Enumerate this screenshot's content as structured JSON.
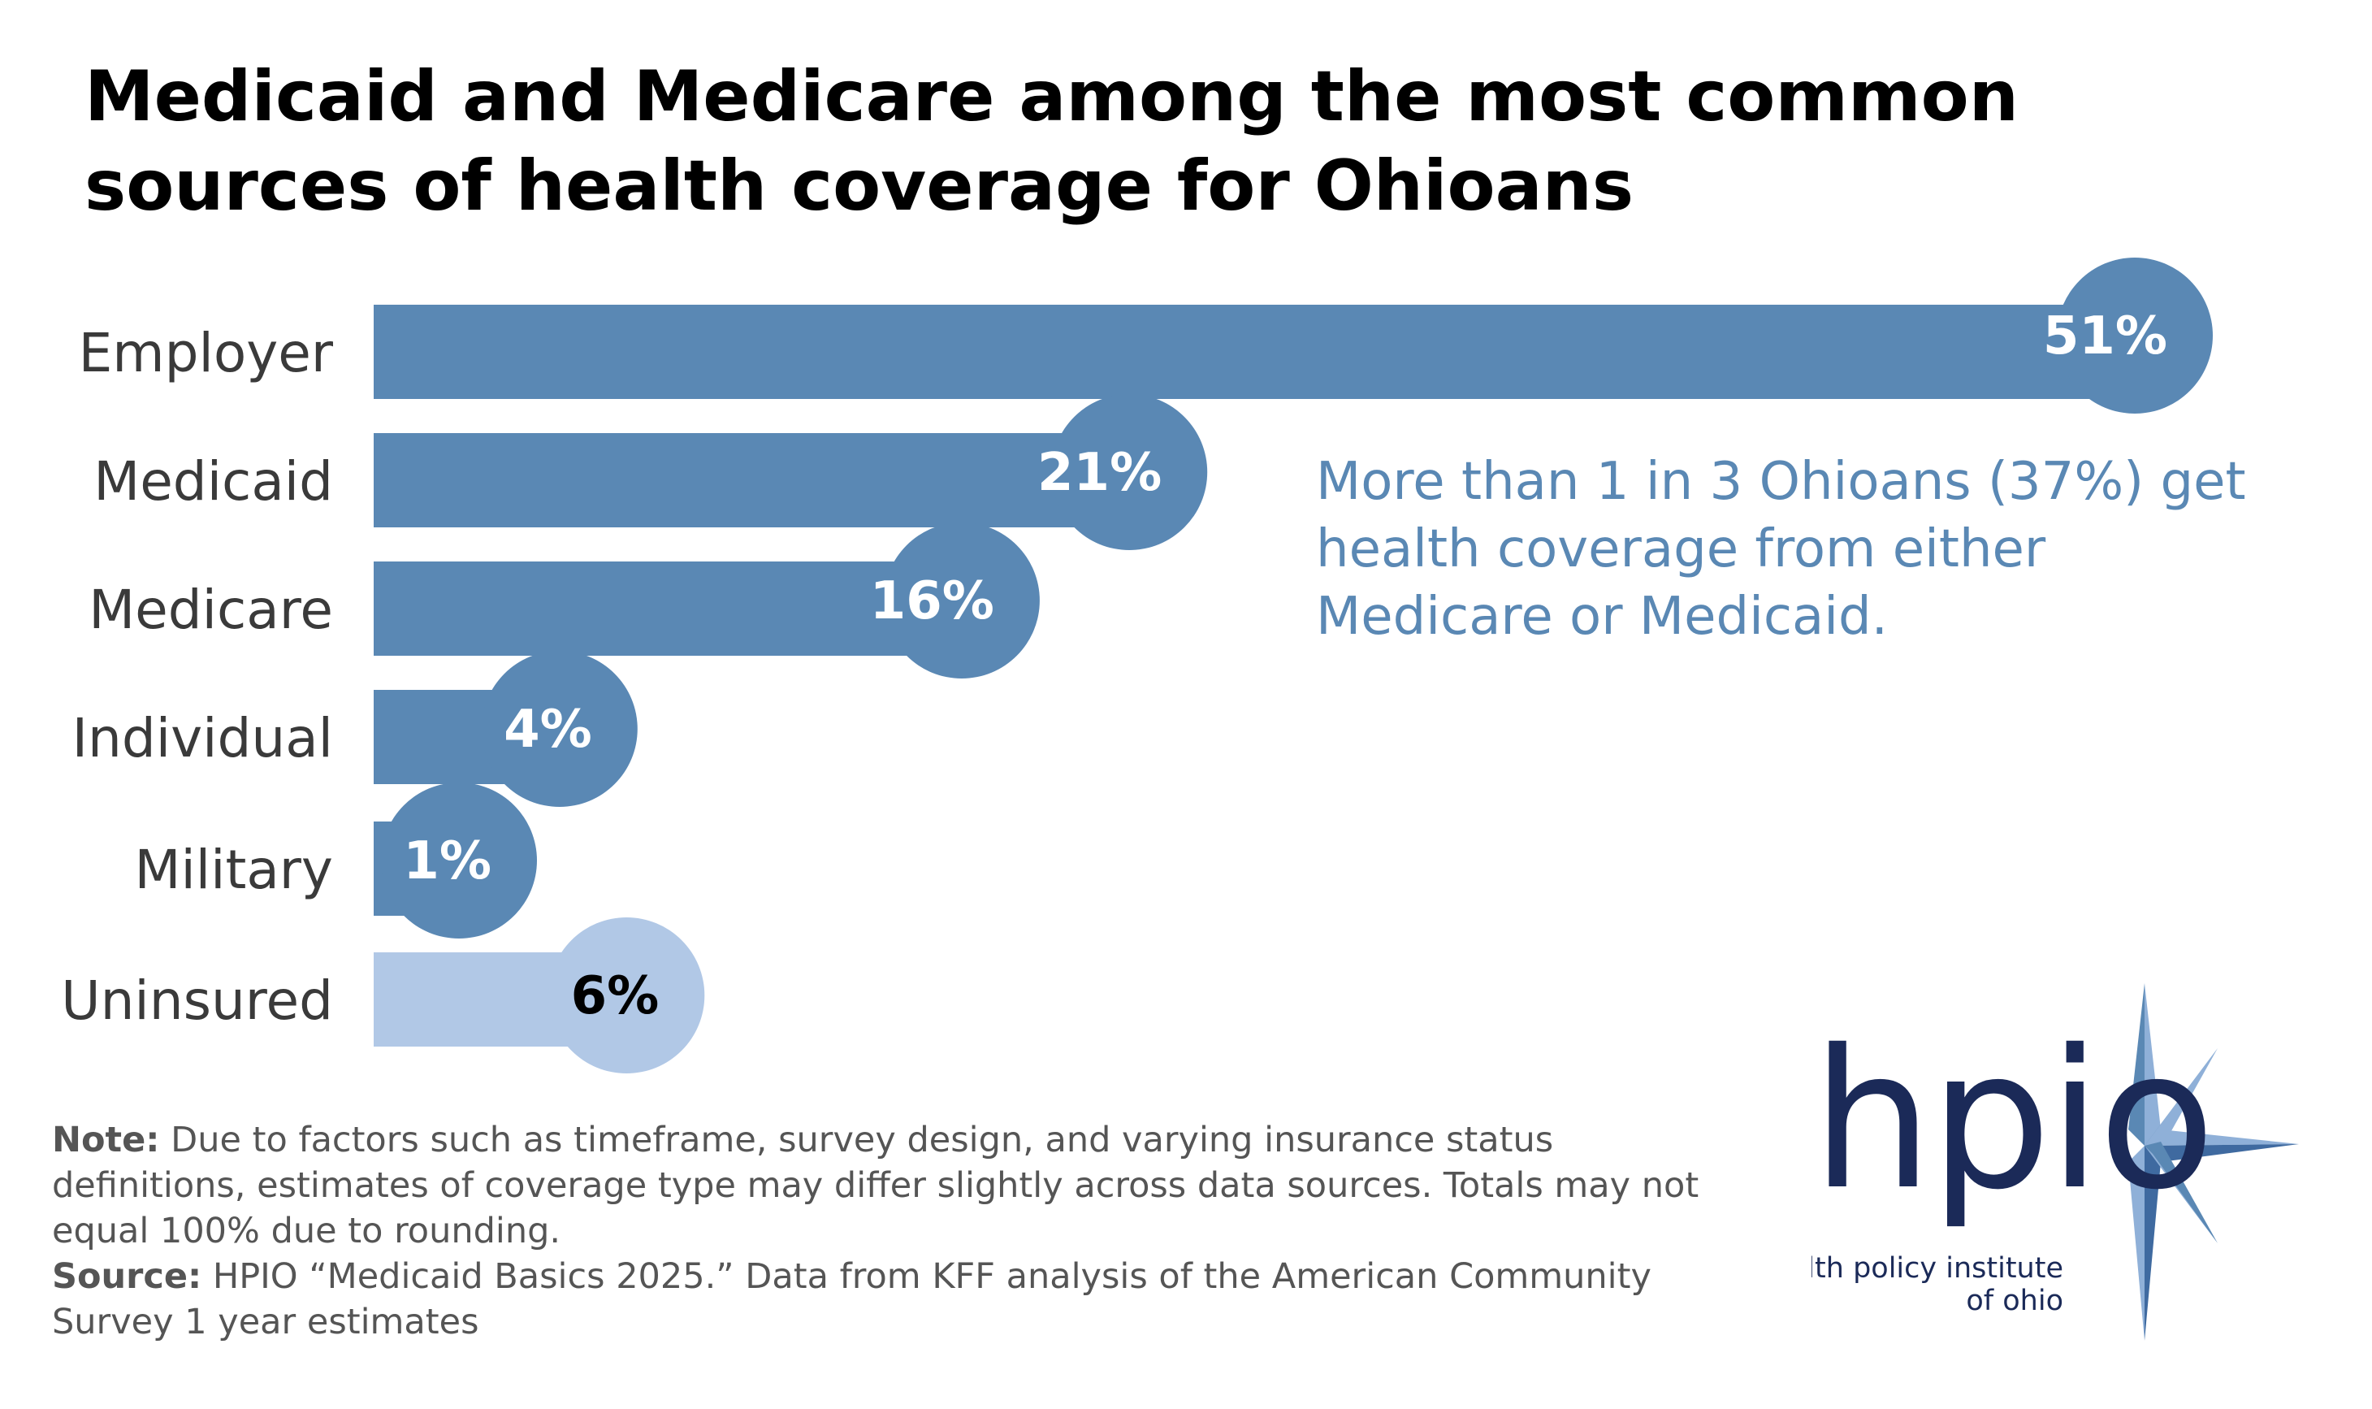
{
  "title": "Medicaid and Medicare among the most common sources of health coverage for Ohioans",
  "chart_data": {
    "type": "bar",
    "orientation": "horizontal",
    "title": "Medicaid and Medicare among the most common sources of health coverage for Ohioans",
    "categories": [
      "Employer",
      "Medicaid",
      "Medicare",
      "Individual",
      "Military",
      "Uninsured"
    ],
    "values": [
      51,
      21,
      16,
      4,
      1,
      6
    ],
    "value_labels": [
      "51%",
      "21%",
      "16%",
      "4%",
      "1%",
      "6%"
    ],
    "unit": "%",
    "xlim": [
      0,
      51
    ],
    "colors": {
      "insured": "#5a88b4",
      "uninsured": "#b1c8e6",
      "label_on_insured": "#ffffff",
      "label_on_uninsured": "#000000"
    }
  },
  "callout": "More than 1 in 3 Ohioans (37%) get health coverage from either Medicare or Medicaid.",
  "note": {
    "label": "Note:",
    "text": " Due to factors such as timeframe, survey design, and varying insurance status definitions, estimates of coverage type may differ slightly across data sources. Totals may not equal 100% due to rounding."
  },
  "source": {
    "label": "Source:",
    "text": " HPIO “Medicaid Basics 2025.” Data from KFF analysis of the American Community Survey 1 year estimates"
  },
  "logo": {
    "word": "hpio",
    "line1": "health policy institute",
    "line2": "of ohio",
    "colors": {
      "navy": "#1b2a58",
      "star_light": "#8fb0d8",
      "star_dark": "#3f6aa0"
    }
  }
}
